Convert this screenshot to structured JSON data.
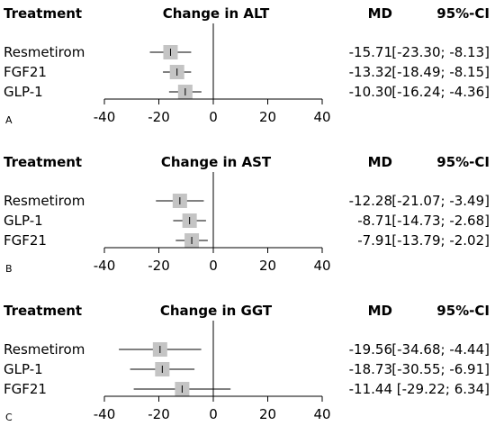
{
  "chart_data": [
    {
      "type": "forest",
      "panel_label": "A",
      "headers": {
        "treatment": "Treatment",
        "title": "Change in ALT",
        "md": "MD",
        "ci": "95%-CI"
      },
      "xlim": [
        -40,
        40
      ],
      "xticks": [
        "-40",
        "-20",
        "0",
        "20",
        "40"
      ],
      "rows": [
        {
          "treatment": "Resmetirom",
          "md": -15.71,
          "lo": -23.3,
          "hi": -8.13,
          "md_text": "-15.71",
          "ci_text": "[-23.30; -8.13]"
        },
        {
          "treatment": "FGF21",
          "md": -13.32,
          "lo": -18.49,
          "hi": -8.15,
          "md_text": "-13.32",
          "ci_text": "[-18.49; -8.15]"
        },
        {
          "treatment": "GLP-1",
          "md": -10.3,
          "lo": -16.24,
          "hi": -4.36,
          "md_text": "-10.30",
          "ci_text": "[-16.24; -4.36]"
        }
      ]
    },
    {
      "type": "forest",
      "panel_label": "B",
      "headers": {
        "treatment": "Treatment",
        "title": "Change in AST",
        "md": "MD",
        "ci": "95%-CI"
      },
      "xlim": [
        -40,
        40
      ],
      "xticks": [
        "-40",
        "-20",
        "0",
        "20",
        "40"
      ],
      "rows": [
        {
          "treatment": "Resmetirom",
          "md": -12.28,
          "lo": -21.07,
          "hi": -3.49,
          "md_text": "-12.28",
          "ci_text": "[-21.07; -3.49]"
        },
        {
          "treatment": "GLP-1",
          "md": -8.71,
          "lo": -14.73,
          "hi": -2.68,
          "md_text": "-8.71",
          "ci_text": "[-14.73; -2.68]"
        },
        {
          "treatment": "FGF21",
          "md": -7.91,
          "lo": -13.79,
          "hi": -2.02,
          "md_text": "-7.91",
          "ci_text": "[-13.79; -2.02]"
        }
      ]
    },
    {
      "type": "forest",
      "panel_label": "C",
      "headers": {
        "treatment": "Treatment",
        "title": "Change in GGT",
        "md": "MD",
        "ci": "95%-CI"
      },
      "xlim": [
        -40,
        40
      ],
      "xticks": [
        "-40",
        "-20",
        "0",
        "20",
        "40"
      ],
      "rows": [
        {
          "treatment": "Resmetirom",
          "md": -19.56,
          "lo": -34.68,
          "hi": -4.44,
          "md_text": "-19.56",
          "ci_text": "[-34.68; -4.44]"
        },
        {
          "treatment": "GLP-1",
          "md": -18.73,
          "lo": -30.55,
          "hi": -6.91,
          "md_text": "-18.73",
          "ci_text": "[-30.55; -6.91]"
        },
        {
          "treatment": "FGF21",
          "md": -11.44,
          "lo": -29.22,
          "hi": 6.34,
          "md_text": "-11.44",
          "ci_text": "[-29.22; 6.34]"
        }
      ]
    }
  ]
}
